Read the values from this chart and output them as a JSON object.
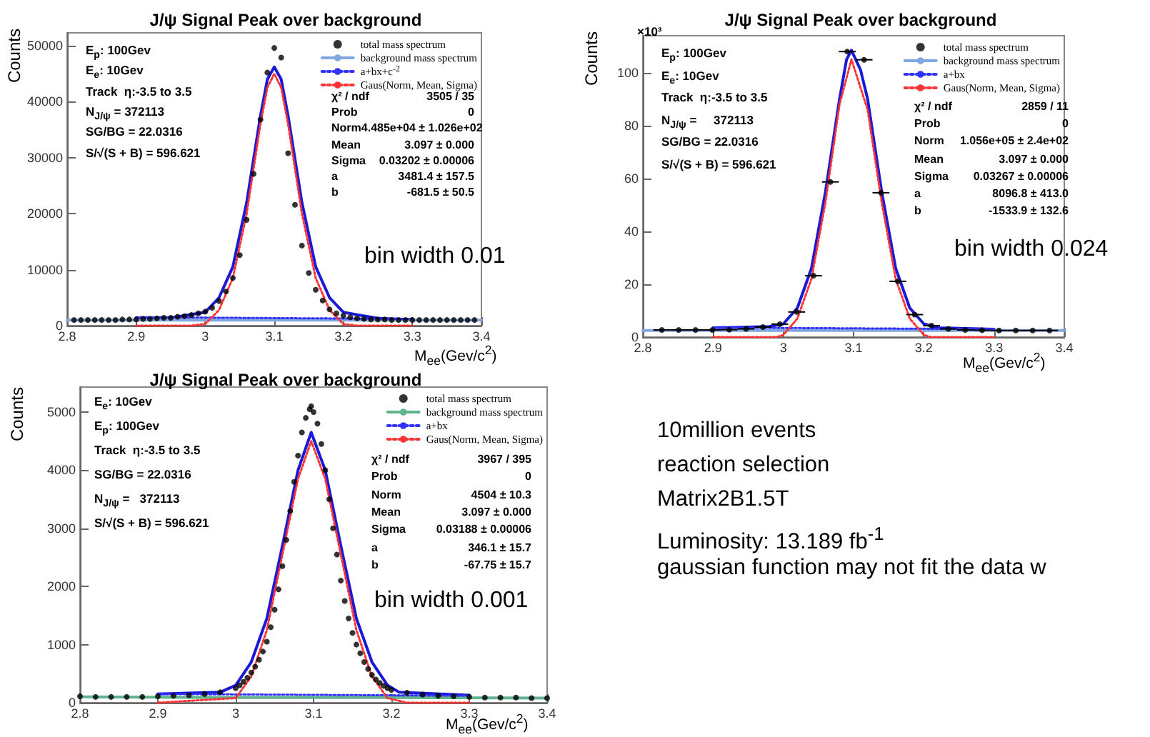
{
  "chart_data": [
    {
      "type": "scatter",
      "title": "J/ψ Signal Peak over background",
      "xlabel": "M$_{ee}$(Gev/c$^{2}$)",
      "ylabel": "Counts",
      "xlim": [
        2.8,
        3.4
      ],
      "xticks": [
        2.8,
        2.9,
        3,
        3.1,
        3.2,
        3.3,
        3.4
      ],
      "ylim": [
        0,
        52300
      ],
      "yticks": [
        0,
        10000,
        20000,
        30000,
        40000,
        50000
      ],
      "grid": false,
      "legend": "top right",
      "series": [
        {
          "name": "total mass spectrum",
          "type": "scatter",
          "color": "#000000",
          "marker": "circle",
          "x": [
            2.81,
            2.82,
            2.83,
            2.84,
            2.85,
            2.86,
            2.87,
            2.88,
            2.89,
            2.9,
            2.91,
            2.92,
            2.93,
            2.94,
            2.95,
            2.96,
            2.97,
            2.98,
            2.99,
            3.0,
            3.01,
            3.02,
            3.03,
            3.04,
            3.05,
            3.06,
            3.07,
            3.08,
            3.09,
            3.1,
            3.11,
            3.12,
            3.13,
            3.14,
            3.15,
            3.16,
            3.17,
            3.18,
            3.19,
            3.2,
            3.21,
            3.22,
            3.23,
            3.24,
            3.25,
            3.26,
            3.27,
            3.28,
            3.29,
            3.3,
            3.31,
            3.32,
            3.33,
            3.34,
            3.35,
            3.36,
            3.37,
            3.38,
            3.39
          ],
          "values": [
            1000,
            1000,
            1000,
            1000,
            1000,
            1000,
            1000,
            1100,
            1100,
            1100,
            1200,
            1200,
            1300,
            1400,
            1400,
            1600,
            1700,
            1900,
            2200,
            2500,
            3200,
            4400,
            6100,
            8500,
            12600,
            18900,
            27100,
            36800,
            45200,
            49600,
            47900,
            30800,
            21600,
            14300,
            9400,
            6400,
            4500,
            2900,
            2200,
            1800,
            1500,
            1300,
            1200,
            1100,
            1100,
            1100,
            1000,
            1000,
            1000,
            1000,
            1000,
            1000,
            1000,
            1000,
            1000,
            1000,
            1000,
            1000,
            1000
          ]
        },
        {
          "type": "line",
          "color": "#1a1ad6",
          "marker": "none",
          "line_style": "solid",
          "x": [
            2.9,
            2.95,
            3.0,
            3.02,
            3.04,
            3.06,
            3.08,
            3.09,
            3.1,
            3.11,
            3.12,
            3.14,
            3.16,
            3.18,
            3.2,
            3.25,
            3.3
          ],
          "values": [
            1300,
            1400,
            2400,
            5000,
            10500,
            22000,
            37500,
            44000,
            46200,
            44000,
            37500,
            22000,
            10500,
            5000,
            2400,
            1300,
            1100
          ]
        },
        {
          "name": "background mass spectrum",
          "type": "line",
          "color": "#7fa7e0",
          "marker": "none",
          "line_style": "solid",
          "x": [
            2.8,
            2.9,
            3.0,
            3.1,
            3.2,
            3.3,
            3.4
          ],
          "values": [
            1000,
            1000,
            1000,
            1000,
            1000,
            1000,
            1000
          ]
        },
        {
          "name": "a+bx+c$^{-2}$",
          "type": "line",
          "color": "#3333ff",
          "marker": "none",
          "line_style": "dotted",
          "x": [
            2.9,
            3.3
          ],
          "values": [
            1500,
            1200
          ]
        },
        {
          "name": "Gaus(Norm, Mean, Sigma)",
          "type": "line",
          "color": "#ff3333",
          "marker": "none",
          "line_style": "dotted",
          "x": [
            2.9,
            2.98,
            3.0,
            3.02,
            3.04,
            3.06,
            3.08,
            3.09,
            3.1,
            3.11,
            3.12,
            3.14,
            3.16,
            3.18,
            3.2,
            3.22,
            3.3
          ],
          "values": [
            0,
            0,
            300,
            2800,
            8500,
            20000,
            36000,
            42500,
            45000,
            42500,
            36000,
            20000,
            8500,
            2800,
            300,
            0,
            0
          ]
        }
      ],
      "annotations": [
        "E$_{p}$: 100Gev",
        "E$_{e}$: 10Gev",
        "Track  η:-3.5 to 3.5",
        "N$_{J/ψ}$ = 372113",
        "SG/BG = 22.0316",
        "S/√(S + B) = 596.621",
        "χ² / ndf  3505 / 35",
        "Prob  0",
        "Norm4.485e+04 ± 1.026e+02",
        "Mean  3.097 ± 0.000",
        "Sigma  0.03202 ± 0.00006",
        "a  3481.4 ± 157.5",
        "b  -681.5 ± 50.5",
        "bin width 0.01"
      ]
    },
    {
      "type": "scatter",
      "title": "J/ψ Signal Peak over background",
      "xlabel": "M$_{ee}$(Gev/c$^{2}$)",
      "ylabel": "Counts",
      "xlim": [
        2.8,
        3.4
      ],
      "xticks": [
        2.8,
        2.9,
        3,
        3.1,
        3.2,
        3.3,
        3.4
      ],
      "ylim": [
        0,
        114
      ],
      "yticks": [
        0,
        20,
        40,
        60,
        80,
        100
      ],
      "grid": false,
      "legend": "top right",
      "series": [
        {
          "name": "total mass spectrum",
          "type": "scatter",
          "color": "#000000",
          "marker": "circle",
          "x": [
            2.827,
            2.851,
            2.875,
            2.899,
            2.923,
            2.947,
            2.971,
            2.995,
            3.019,
            3.043,
            3.067,
            3.091,
            3.115,
            3.139,
            3.163,
            3.187,
            3.211,
            3.235,
            3.259,
            3.283,
            3.307,
            3.331,
            3.355,
            3.379
          ],
          "values": [
            2.7,
            2.7,
            2.7,
            2.7,
            2.8,
            3.1,
            3.8,
            4.9,
            9.5,
            23.2,
            58.7,
            108,
            104.9,
            54.6,
            21.1,
            8.5,
            4.3,
            3.1,
            2.7,
            2.6,
            2.5,
            2.5,
            2.5,
            2.5
          ],
          "xerrors": [
            0.012,
            0.012,
            0.012,
            0.012,
            0.012,
            0.012,
            0.012,
            0.012,
            0.012,
            0.012,
            0.012,
            0.012,
            0.012,
            0.012,
            0.012,
            0.012,
            0.012,
            0.012,
            0.012,
            0.012,
            0.012,
            0.012,
            0.012,
            0.012
          ]
        },
        {
          "type": "line",
          "color": "#1a1ad6",
          "marker": "none",
          "line_style": "solid",
          "x": [
            2.9,
            2.98,
            3.0,
            3.02,
            3.04,
            3.06,
            3.08,
            3.09,
            3.097,
            3.11,
            3.12,
            3.14,
            3.16,
            3.18,
            3.2,
            3.22,
            3.3
          ],
          "values": [
            3.5,
            4,
            5,
            11,
            26,
            55,
            90,
            105,
            108.5,
            101,
            90,
            55,
            26,
            11,
            5,
            3.5,
            3.0
          ]
        },
        {
          "name": "background mass spectrum",
          "type": "line",
          "color": "#7fa7e0",
          "marker": "none",
          "line_style": "solid",
          "x": [
            2.8,
            3.0,
            3.2,
            3.4
          ],
          "values": [
            2.5,
            2.5,
            2.5,
            2.5
          ]
        },
        {
          "name": "a+bx",
          "type": "line",
          "color": "#3333ff",
          "marker": "none",
          "line_style": "dotted",
          "x": [
            2.9,
            3.3
          ],
          "values": [
            3.6,
            3.0
          ]
        },
        {
          "name": "Gaus(Norm, Mean, Sigma)",
          "type": "line",
          "color": "#ff3333",
          "marker": "none",
          "line_style": "dotted",
          "x": [
            2.9,
            2.99,
            3.0,
            3.02,
            3.04,
            3.06,
            3.08,
            3.097,
            3.12,
            3.14,
            3.16,
            3.18,
            3.2,
            3.21,
            3.3
          ],
          "values": [
            0,
            0,
            0.8,
            7,
            22,
            51,
            88,
            105,
            86,
            51,
            22,
            7,
            0.8,
            0,
            0
          ]
        }
      ],
      "annotations": [
        "E$_{p}$: 100Gev",
        "E$_{e}$: 10Gev",
        "Track  η:-3.5 to 3.5",
        "N$_{J/ψ}$ =     372113",
        "SG/BG = 22.0316",
        "S/√(S + B) = 596.621",
        "χ² / ndf  2859 / 11",
        "Prob  0",
        "Norm  1.056e+05 ± 2.4e+02",
        "Mean  3.097 ± 0.000",
        "Sigma  0.03267 ± 0.00006",
        "a  8096.8 ± 413.0",
        "b  -1533.9 ± 132.6",
        "bin width 0.024",
        "×10³"
      ]
    },
    {
      "type": "scatter",
      "title": "J/ψ Signal Peak over background",
      "xlabel": "M$_{ee}$(Gev/c$^{2}$)",
      "ylabel": "Counts",
      "xlim": [
        2.8,
        3.4
      ],
      "xticks": [
        2.8,
        2.9,
        3,
        3.1,
        3.2,
        3.3,
        3.4
      ],
      "ylim": [
        0,
        5430
      ],
      "yticks": [
        0,
        1000,
        2000,
        3000,
        4000,
        5000
      ],
      "grid": false,
      "legend": "top right",
      "series": [
        {
          "name": "total mass spectrum",
          "type": "scatter",
          "color": "#000000",
          "marker": "circle",
          "x": [
            2.8,
            2.82,
            2.84,
            2.86,
            2.88,
            2.9,
            2.92,
            2.94,
            2.96,
            2.98,
            3.0,
            3.005,
            3.01,
            3.015,
            3.02,
            3.025,
            3.03,
            3.035,
            3.04,
            3.045,
            3.05,
            3.055,
            3.06,
            3.065,
            3.07,
            3.075,
            3.08,
            3.085,
            3.09,
            3.095,
            3.097,
            3.1,
            3.105,
            3.11,
            3.115,
            3.12,
            3.125,
            3.13,
            3.135,
            3.14,
            3.145,
            3.15,
            3.155,
            3.16,
            3.165,
            3.17,
            3.175,
            3.18,
            3.185,
            3.19,
            3.195,
            3.2,
            3.22,
            3.24,
            3.26,
            3.28,
            3.3,
            3.32,
            3.34,
            3.36,
            3.38,
            3.4
          ],
          "values": [
            110,
            100,
            100,
            100,
            100,
            110,
            120,
            130,
            150,
            180,
            250,
            300,
            360,
            430,
            520,
            620,
            740,
            880,
            1050,
            1300,
            1600,
            1950,
            2350,
            2800,
            3300,
            3800,
            4250,
            4650,
            4900,
            5050,
            5100,
            5000,
            4800,
            4450,
            4000,
            3500,
            3000,
            2550,
            2100,
            1750,
            1450,
            1200,
            1000,
            850,
            700,
            580,
            480,
            400,
            340,
            290,
            250,
            220,
            170,
            140,
            120,
            110,
            100,
            90,
            90,
            90,
            80,
            80
          ]
        },
        {
          "type": "line",
          "color": "#1a1ad6",
          "marker": "none",
          "line_style": "solid",
          "x": [
            2.9,
            2.98,
            3.0,
            3.02,
            3.04,
            3.06,
            3.08,
            3.097,
            3.115,
            3.135,
            3.155,
            3.175,
            3.195,
            3.21,
            3.3
          ],
          "values": [
            150,
            180,
            300,
            700,
            1450,
            2700,
            4000,
            4650,
            4000,
            2700,
            1450,
            700,
            300,
            180,
            130
          ]
        },
        {
          "name": "background mass spectrum",
          "type": "line",
          "color": "#5fb38f",
          "marker": "none",
          "line_style": "solid",
          "x": [
            2.8,
            3.0,
            3.2,
            3.4
          ],
          "values": [
            100,
            90,
            90,
            80
          ]
        },
        {
          "name": "a+bx",
          "type": "line",
          "color": "#3333ff",
          "marker": "none",
          "line_style": "dotted",
          "x": [
            2.9,
            3.3
          ],
          "values": [
            150,
            120
          ]
        },
        {
          "name": "Gaus(Norm, Mean, Sigma)",
          "type": "line",
          "color": "#ff3333",
          "marker": "none",
          "line_style": "dotted",
          "x": [
            2.9,
            3.0,
            3.02,
            3.04,
            3.06,
            3.08,
            3.097,
            3.115,
            3.135,
            3.155,
            3.175,
            3.195,
            3.22,
            3.3
          ],
          "values": [
            0,
            80,
            450,
            1250,
            2550,
            3850,
            4500,
            3850,
            2550,
            1250,
            450,
            80,
            0,
            0
          ]
        }
      ],
      "annotations": [
        "E$_{e}$: 10Gev",
        "E$_{p}$: 100Gev",
        "Track  η:-3.5 to 3.5",
        "SG/BG = 22.0316",
        "N$_{J/ψ}$ =   372113",
        "S/√(S + B) = 596.621",
        "χ² / ndf  3967 / 395",
        "Prob  0",
        "Norm  4504 ± 10.3",
        "Mean  3.097 ± 0.000",
        "Sigma  0.03188 ± 0.00006",
        "a  346.1 ± 15.7",
        "b  -67.75 ± 15.7",
        "bin width 0.001"
      ]
    },
    {
      "type": "other",
      "annotations": [
        "10million events",
        "reaction selection",
        "Matrix2B1.5T",
        "Luminosity: 13.189 fb$^{-1}$",
        "gaussian function may not fit the data w"
      ]
    }
  ]
}
